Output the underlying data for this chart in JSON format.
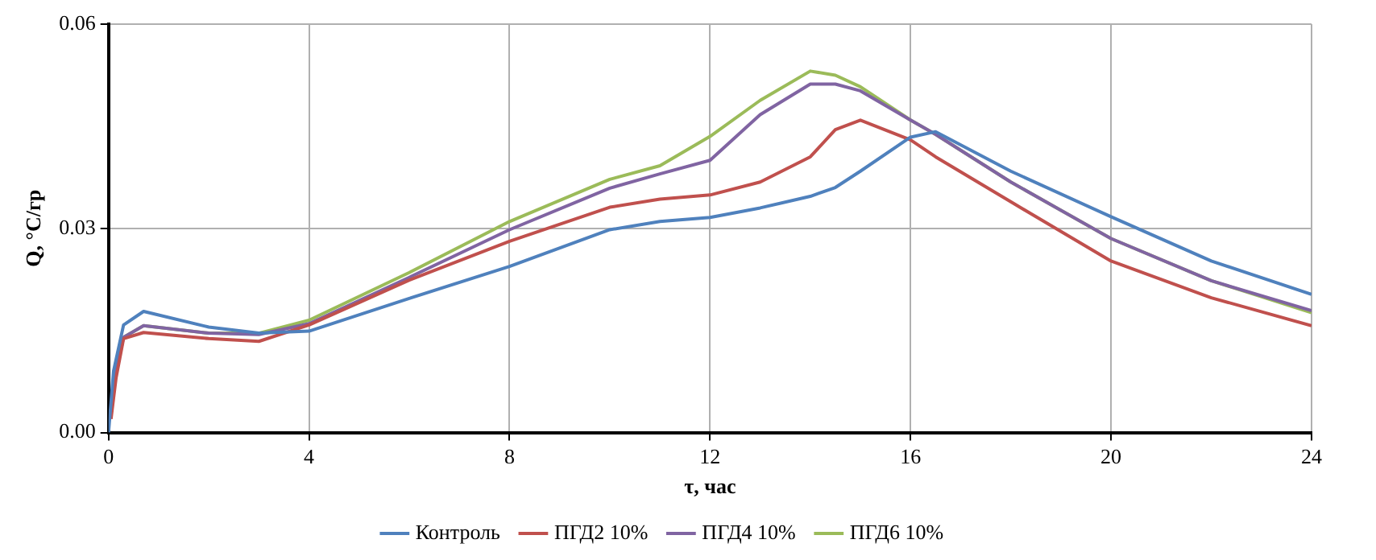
{
  "chart_data": {
    "type": "line",
    "xlabel": "τ, час",
    "ylabel": "Q, °C/гр",
    "series": [
      {
        "name": "Контроль",
        "color": "#4f81bd",
        "x": [
          0,
          0.1,
          0.3,
          0.7,
          2,
          3,
          4,
          6,
          8,
          10,
          11,
          12,
          13,
          14,
          14.5,
          15,
          16,
          16.5,
          18,
          20,
          22,
          24
        ],
        "values": [
          0,
          0.009,
          0.0158,
          0.0178,
          0.0155,
          0.0146,
          0.0149,
          0.0197,
          0.0244,
          0.0298,
          0.031,
          0.0316,
          0.033,
          0.0347,
          0.036,
          0.0384,
          0.0434,
          0.0442,
          0.0384,
          0.0317,
          0.0252,
          0.0203
        ]
      },
      {
        "name": "ПГД2 10%",
        "color": "#c0504d",
        "x": [
          0.05,
          0.15,
          0.3,
          0.7,
          2,
          3,
          4,
          6,
          8,
          10,
          11,
          12,
          13,
          14,
          14.5,
          15,
          16,
          16.5,
          18,
          20,
          22,
          24
        ],
        "values": [
          0.002,
          0.008,
          0.0138,
          0.0147,
          0.0138,
          0.0134,
          0.0158,
          0.0224,
          0.0281,
          0.0331,
          0.0343,
          0.0349,
          0.0368,
          0.0405,
          0.0445,
          0.0459,
          0.043,
          0.0405,
          0.0339,
          0.0252,
          0.0198,
          0.0157
        ]
      },
      {
        "name": "ПГД4 10%",
        "color": "#8064a2",
        "x": [
          0.05,
          0.15,
          0.3,
          0.7,
          2,
          3,
          4,
          6,
          8,
          10,
          11,
          12,
          13,
          14,
          14.5,
          15,
          16,
          16.5,
          18,
          20,
          22,
          24
        ],
        "values": [
          0.003,
          0.009,
          0.014,
          0.0157,
          0.0146,
          0.0144,
          0.016,
          0.0228,
          0.0298,
          0.0359,
          0.038,
          0.04,
          0.0467,
          0.0512,
          0.0512,
          0.0502,
          0.0459,
          0.0438,
          0.0368,
          0.0285,
          0.0223,
          0.0179
        ]
      },
      {
        "name": "ПГД6 10%",
        "color": "#9bbb59",
        "x": [
          0.3,
          0.7,
          2,
          3,
          4,
          6,
          8,
          10,
          11,
          12,
          13,
          14,
          14.5,
          15,
          16,
          16.5,
          18,
          20,
          22,
          24
        ],
        "values": [
          0.014,
          0.0157,
          0.0146,
          0.0146,
          0.0165,
          0.0235,
          0.031,
          0.0372,
          0.0392,
          0.0435,
          0.0488,
          0.0531,
          0.0525,
          0.0508,
          0.0459,
          0.0438,
          0.0368,
          0.0285,
          0.0223,
          0.0176
        ]
      }
    ],
    "xlim": [
      0,
      24
    ],
    "xticks": [
      0,
      4,
      8,
      12,
      16,
      20,
      24
    ],
    "ylim": [
      0,
      0.06
    ],
    "yticks": [
      {
        "value": 0,
        "label": "0.00"
      },
      {
        "value": 0.03,
        "label": "0.03"
      },
      {
        "value": 0.06,
        "label": "0.06"
      }
    ],
    "grid": true,
    "legend": "bottom",
    "marker": "none",
    "line_style": "solid"
  }
}
